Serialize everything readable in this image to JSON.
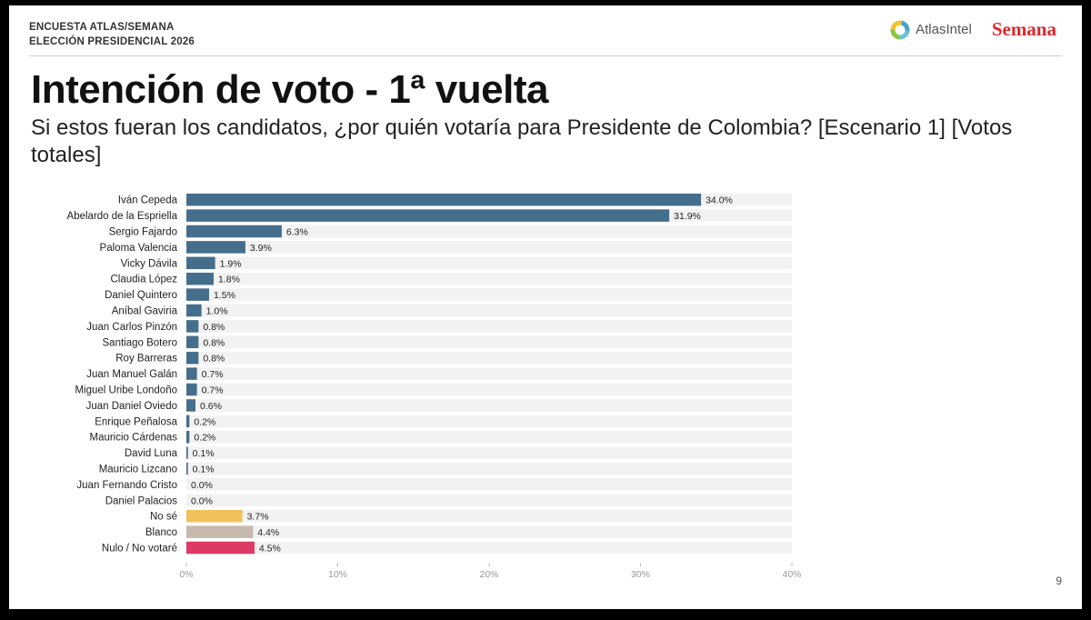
{
  "header": {
    "survey_line1": "ENCUESTA ATLAS/SEMANA",
    "survey_line2": "ELECCIÓN PRESIDENCIAL 2026",
    "logo_atlas": "AtlasIntel",
    "logo_semana": "Semana"
  },
  "title": "Intención de voto - 1ª vuelta",
  "subtitle": "Si estos fueran los candidatos, ¿por quién votaría para Presidente de Colombia? [Escenario 1] [Votos totales]",
  "page_number": "9",
  "colors": {
    "candidate": "#456e8c",
    "no_se": "#f0c05a",
    "blanco": "#c7b9ae",
    "nulo": "#dc3a62",
    "track": "#f2f2f2"
  },
  "chart_data": {
    "type": "bar",
    "orientation": "horizontal",
    "title": "Intención de voto - 1ª vuelta",
    "xlabel": "",
    "ylabel": "",
    "xlim": [
      0,
      40
    ],
    "xticks": [
      "0%",
      "10%",
      "20%",
      "30%",
      "40%"
    ],
    "categories": [
      "Iván Cepeda",
      "Abelardo de la Espriella",
      "Sergio Fajardo",
      "Paloma Valencia",
      "Vicky Dávila",
      "Claudia López",
      "Daniel Quintero",
      "Aníbal Gaviria",
      "Juan Carlos Pinzón",
      "Santiago Botero",
      "Roy Barreras",
      "Juan Manuel Galán",
      "Miguel Uribe Londoño",
      "Juan Daniel Oviedo",
      "Enrique Peñalosa",
      "Mauricio Cárdenas",
      "David Luna",
      "Mauricio Lizcano",
      "Juan Fernando Cristo",
      "Daniel Palacios",
      "No sé",
      "Blanco",
      "Nulo / No votaré"
    ],
    "values": [
      34.0,
      31.9,
      6.3,
      3.9,
      1.9,
      1.8,
      1.5,
      1.0,
      0.8,
      0.8,
      0.8,
      0.7,
      0.7,
      0.6,
      0.2,
      0.2,
      0.1,
      0.1,
      0.0,
      0.0,
      3.7,
      4.4,
      4.5
    ],
    "labels": [
      "34.0%",
      "31.9%",
      "6.3%",
      "3.9%",
      "1.9%",
      "1.8%",
      "1.5%",
      "1.0%",
      "0.8%",
      "0.8%",
      "0.8%",
      "0.7%",
      "0.7%",
      "0.6%",
      "0.2%",
      "0.2%",
      "0.1%",
      "0.1%",
      "0.0%",
      "0.0%",
      "3.7%",
      "4.4%",
      "4.5%"
    ],
    "bar_colors": [
      "candidate",
      "candidate",
      "candidate",
      "candidate",
      "candidate",
      "candidate",
      "candidate",
      "candidate",
      "candidate",
      "candidate",
      "candidate",
      "candidate",
      "candidate",
      "candidate",
      "candidate",
      "candidate",
      "candidate",
      "candidate",
      "candidate",
      "candidate",
      "no_se",
      "blanco",
      "nulo"
    ]
  }
}
